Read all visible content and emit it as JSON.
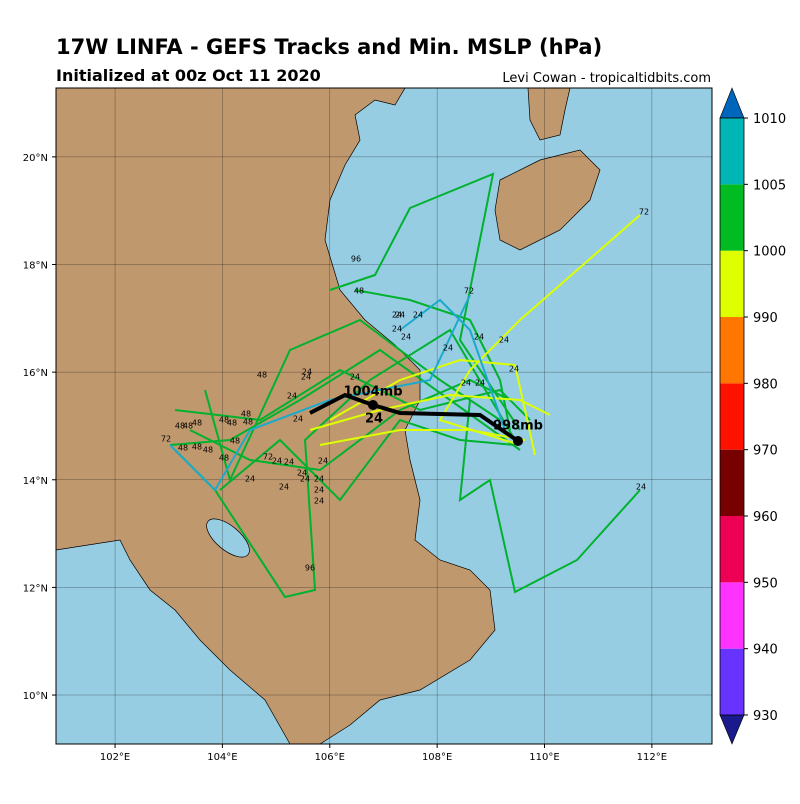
{
  "header": {
    "title": "17W LINFA - GEFS Tracks and Min. MSLP (hPa)",
    "subtitle": "Initialized at 00z Oct 11 2020",
    "credit": "Levi Cowan - tropicaltidbits.com"
  },
  "map": {
    "lon_range": [
      100.9,
      113.12
    ],
    "lat_range": [
      9.09,
      21.28
    ],
    "lon_ticks": [
      {
        "value": 102,
        "label": "102°E"
      },
      {
        "value": 104,
        "label": "104°E"
      },
      {
        "value": 106,
        "label": "106°E"
      },
      {
        "value": 108,
        "label": "108°E"
      },
      {
        "value": 110,
        "label": "110°E"
      },
      {
        "value": 112,
        "label": "112°E"
      }
    ],
    "lat_ticks": [
      {
        "value": 10,
        "label": "10°N"
      },
      {
        "value": 12,
        "label": "12°N"
      },
      {
        "value": 14,
        "label": "14°N"
      },
      {
        "value": 16,
        "label": "16°N"
      },
      {
        "value": 18,
        "label": "18°N"
      },
      {
        "value": 20,
        "label": "20°N"
      }
    ],
    "mean_track_labels": [
      "1004mb",
      "24",
      "998mb"
    ],
    "track_labels": [
      "96",
      "48",
      "72",
      "24",
      "24",
      "24",
      "24",
      "24",
      "24",
      "24",
      "24",
      "24",
      "24",
      "24",
      "24",
      "48",
      "24",
      "24",
      "24",
      "24",
      "48",
      "48",
      "48",
      "48",
      "48",
      "48",
      "48",
      "72",
      "48",
      "48",
      "48",
      "48",
      "48",
      "72",
      "24",
      "24",
      "24",
      "24",
      "24",
      "24",
      "24",
      "24",
      "24",
      "24",
      "96",
      "72",
      "24"
    ]
  },
  "colorbar": {
    "levels": [
      930,
      940,
      950,
      960,
      970,
      980,
      990,
      1000,
      1005,
      1010
    ]
  }
}
